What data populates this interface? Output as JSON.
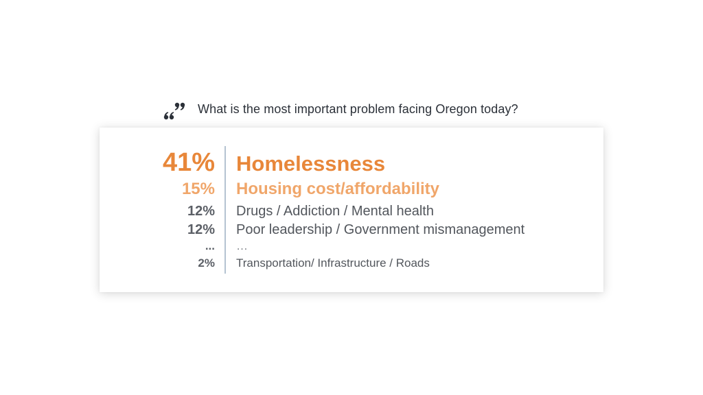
{
  "question": "What is the most important problem facing Oregon today?",
  "colors": {
    "accent_primary": "#e8873a",
    "accent_secondary": "#f0a66a",
    "text_dark": "#2b3038",
    "text_gray": "#52565c",
    "divider": "#b4c3d1"
  },
  "icons": {
    "quote": "quote-icon"
  },
  "chart_data": {
    "type": "table",
    "columns": [
      "percent",
      "problem"
    ],
    "rows": [
      {
        "percent": "41%",
        "value": 41,
        "label": "Homelessness"
      },
      {
        "percent": "15%",
        "value": 15,
        "label": "Housing cost/affordability"
      },
      {
        "percent": "12%",
        "value": 12,
        "label": "Drugs / Addiction / Mental health"
      },
      {
        "percent": "12%",
        "value": 12,
        "label": "Poor leadership / Government mismanagement"
      },
      {
        "percent": "...",
        "value": null,
        "label": "…"
      },
      {
        "percent": "2%",
        "value": 2,
        "label": "Transportation/ Infrastructure / Roads"
      }
    ]
  }
}
